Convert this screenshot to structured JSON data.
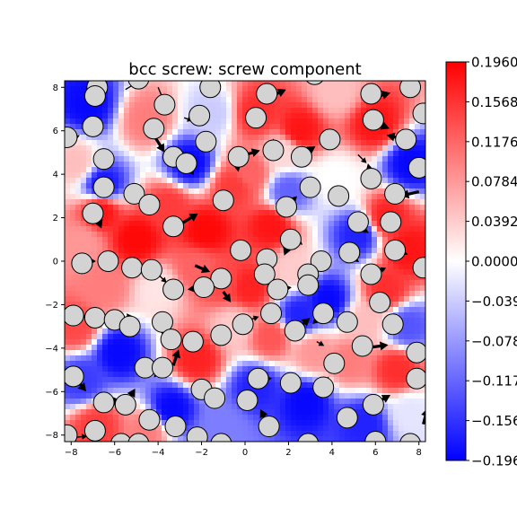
{
  "chart_data": {
    "type": "heatmap",
    "title": "bcc screw: screw component",
    "xlabel": "",
    "ylabel": "",
    "xlim": [
      -8.3,
      8.3
    ],
    "ylim": [
      -8.3,
      8.3
    ],
    "x_ticks": [
      -8,
      -6,
      -4,
      -2,
      0,
      2,
      4,
      6,
      8
    ],
    "y_ticks": [
      -8,
      -6,
      -4,
      -2,
      0,
      2,
      4,
      6,
      8
    ],
    "x_tick_labels": [
      "−8",
      "−6",
      "−4",
      "−2",
      "0",
      "2",
      "4",
      "6",
      "8"
    ],
    "y_tick_labels": [
      "−8",
      "−6",
      "−4",
      "−2",
      "0",
      "2",
      "4",
      "6",
      "8"
    ],
    "grid": false,
    "colormap": "bwr",
    "colors": {
      "low": "#0000ff",
      "mid": "#ffffff",
      "high": "#ff0000",
      "atom_fill": "#d3d3d3",
      "arrow": "#000000"
    },
    "colorbar": {
      "range": [
        -0.196,
        0.196
      ],
      "tick_labels": [
        "0.1960",
        "0.1568",
        "0.1176",
        "0.0784",
        "0.0392",
        "0.0000",
        "−0.039",
        "−0.078",
        "−0.117",
        "−0.156",
        "−0.196"
      ],
      "tick_values": [
        0.196,
        0.1568,
        0.1176,
        0.0784,
        0.0392,
        0.0,
        -0.0392,
        -0.0784,
        -0.1176,
        -0.1568,
        -0.196
      ]
    },
    "field_samples": [
      {
        "x": -7.2,
        "y": 7.2,
        "v": -0.19
      },
      {
        "x": -6.5,
        "y": 3.5,
        "v": -0.18
      },
      {
        "x": -7.8,
        "y": 4.5,
        "v": 0.05
      },
      {
        "x": -6.6,
        "y": 2.3,
        "v": 0.18
      },
      {
        "x": -5.0,
        "y": 1.0,
        "v": 0.19
      },
      {
        "x": -4.5,
        "y": 6.5,
        "v": 0.1
      },
      {
        "x": -3.5,
        "y": 2.5,
        "v": 0.15
      },
      {
        "x": -2.5,
        "y": 4.5,
        "v": -0.19
      },
      {
        "x": -1.5,
        "y": 6.8,
        "v": -0.04
      },
      {
        "x": 0.5,
        "y": 6.8,
        "v": 0.16
      },
      {
        "x": 0.2,
        "y": 4.0,
        "v": 0.12
      },
      {
        "x": 2.5,
        "y": 6.0,
        "v": 0.18
      },
      {
        "x": 4.2,
        "y": 7.8,
        "v": 0.05
      },
      {
        "x": 6.0,
        "y": 6.3,
        "v": 0.18
      },
      {
        "x": 7.6,
        "y": 4.5,
        "v": -0.19
      },
      {
        "x": 4.2,
        "y": 3.8,
        "v": 0.0
      },
      {
        "x": 2.0,
        "y": 3.2,
        "v": -0.12
      },
      {
        "x": 1.2,
        "y": 1.6,
        "v": 0.18
      },
      {
        "x": -1.8,
        "y": 1.4,
        "v": 0.19
      },
      {
        "x": -0.5,
        "y": 3.4,
        "v": 0.15
      },
      {
        "x": -7.5,
        "y": 0.8,
        "v": 0.08
      },
      {
        "x": -6.5,
        "y": -1.2,
        "v": 0.1
      },
      {
        "x": -4.0,
        "y": -1.3,
        "v": 0.02
      },
      {
        "x": -2.2,
        "y": -0.3,
        "v": 0.12
      },
      {
        "x": 0.2,
        "y": -1.2,
        "v": 0.17
      },
      {
        "x": 2.2,
        "y": -0.4,
        "v": 0.04
      },
      {
        "x": 3.8,
        "y": -1.8,
        "v": -0.19
      },
      {
        "x": 5.2,
        "y": 1.2,
        "v": -0.17
      },
      {
        "x": 7.5,
        "y": 0.5,
        "v": 0.18
      },
      {
        "x": 6.5,
        "y": -1.3,
        "v": 0.16
      },
      {
        "x": 7.5,
        "y": -3.0,
        "v": -0.13
      },
      {
        "x": 5.5,
        "y": -2.8,
        "v": 0.05
      },
      {
        "x": 4.8,
        "y": -4.6,
        "v": 0.1
      },
      {
        "x": 7.0,
        "y": -5.0,
        "v": 0.16
      },
      {
        "x": 7.6,
        "y": -7.0,
        "v": -0.02
      },
      {
        "x": 5.5,
        "y": -7.5,
        "v": -0.17
      },
      {
        "x": 2.8,
        "y": -6.5,
        "v": -0.19
      },
      {
        "x": 0.5,
        "y": -5.8,
        "v": -0.17
      },
      {
        "x": -1.0,
        "y": -7.6,
        "v": -0.1
      },
      {
        "x": -3.4,
        "y": -6.8,
        "v": -0.19
      },
      {
        "x": -5.8,
        "y": -4.2,
        "v": -0.19
      },
      {
        "x": -7.5,
        "y": -5.5,
        "v": -0.15
      },
      {
        "x": -7.8,
        "y": -3.0,
        "v": 0.14
      },
      {
        "x": -6.8,
        "y": -7.6,
        "v": 0.15
      },
      {
        "x": -4.5,
        "y": -7.8,
        "v": 0.1
      },
      {
        "x": -2.2,
        "y": -4.5,
        "v": 0.17
      },
      {
        "x": -0.5,
        "y": -3.0,
        "v": 0.04
      },
      {
        "x": 1.2,
        "y": -3.5,
        "v": 0.13
      },
      {
        "x": 2.5,
        "y": -2.5,
        "v": -0.17
      },
      {
        "x": 3.2,
        "y": -4.2,
        "v": 0.08
      },
      {
        "x": 6.5,
        "y": 2.0,
        "v": 0.17
      },
      {
        "x": -1.0,
        "y": -1.0,
        "v": 0.14
      },
      {
        "x": 1.8,
        "y": 5.0,
        "v": 0.03
      }
    ],
    "atoms": [
      [
        -6.8,
        8.0
      ],
      [
        -4.9,
        8.4
      ],
      [
        -1.6,
        8.0
      ],
      [
        1.0,
        7.7
      ],
      [
        3.2,
        8.6
      ],
      [
        5.8,
        7.7
      ],
      [
        7.6,
        8.0
      ],
      [
        -6.9,
        7.6
      ],
      [
        -3.7,
        7.2
      ],
      [
        -2.1,
        6.7
      ],
      [
        0.5,
        6.6
      ],
      [
        8.2,
        6.8
      ],
      [
        -8.2,
        5.7
      ],
      [
        -7.0,
        6.2
      ],
      [
        -4.2,
        6.1
      ],
      [
        -1.8,
        5.5
      ],
      [
        1.3,
        5.1
      ],
      [
        3.9,
        5.6
      ],
      [
        5.9,
        6.5
      ],
      [
        7.4,
        5.6
      ],
      [
        -6.5,
        4.7
      ],
      [
        -3.3,
        4.8
      ],
      [
        -2.7,
        4.5
      ],
      [
        -0.3,
        4.8
      ],
      [
        2.6,
        4.8
      ],
      [
        8.0,
        4.3
      ],
      [
        -6.5,
        3.4
      ],
      [
        -5.1,
        3.1
      ],
      [
        -4.4,
        2.6
      ],
      [
        -1.0,
        2.8
      ],
      [
        1.9,
        2.5
      ],
      [
        3.0,
        3.4
      ],
      [
        4.3,
        3.0
      ],
      [
        5.8,
        3.8
      ],
      [
        6.9,
        3.1
      ],
      [
        -7.0,
        2.2
      ],
      [
        -3.3,
        1.6
      ],
      [
        2.1,
        1.0
      ],
      [
        5.2,
        1.8
      ],
      [
        6.7,
        1.8
      ],
      [
        -0.2,
        0.5
      ],
      [
        1.0,
        0.1
      ],
      [
        3.5,
        0.0
      ],
      [
        4.8,
        0.4
      ],
      [
        6.9,
        0.5
      ],
      [
        -7.5,
        -0.1
      ],
      [
        -6.3,
        0.0
      ],
      [
        -5.2,
        -0.3
      ],
      [
        -4.3,
        -0.4
      ],
      [
        -1.1,
        -0.8
      ],
      [
        0.9,
        -0.6
      ],
      [
        2.9,
        -0.6
      ],
      [
        5.8,
        -0.6
      ],
      [
        8.2,
        -0.3
      ],
      [
        -3.3,
        -1.3
      ],
      [
        -1.9,
        -1.2
      ],
      [
        1.5,
        -1.3
      ],
      [
        2.9,
        -1.1
      ],
      [
        6.2,
        -1.9
      ],
      [
        -7.9,
        -2.5
      ],
      [
        -6.9,
        -2.6
      ],
      [
        -6.0,
        -2.7
      ],
      [
        -5.3,
        -3.0
      ],
      [
        -3.8,
        -2.8
      ],
      [
        -0.1,
        -2.9
      ],
      [
        1.2,
        -2.4
      ],
      [
        3.6,
        -2.4
      ],
      [
        4.7,
        -2.8
      ],
      [
        6.8,
        -2.9
      ],
      [
        -3.4,
        -3.6
      ],
      [
        -2.4,
        -3.7
      ],
      [
        -1.1,
        -3.4
      ],
      [
        2.3,
        -3.2
      ],
      [
        5.4,
        -3.9
      ],
      [
        7.9,
        -4.2
      ],
      [
        -7.9,
        -5.3
      ],
      [
        -4.6,
        -4.9
      ],
      [
        -3.8,
        -4.9
      ],
      [
        -2.0,
        -5.9
      ],
      [
        -1.4,
        -6.3
      ],
      [
        0.6,
        -5.4
      ],
      [
        2.1,
        -5.6
      ],
      [
        4.1,
        -4.7
      ],
      [
        3.6,
        -5.8
      ],
      [
        7.9,
        -5.4
      ],
      [
        -6.5,
        -6.5
      ],
      [
        -5.5,
        -6.6
      ],
      [
        -4.4,
        -7.3
      ],
      [
        0.1,
        -6.4
      ],
      [
        1.1,
        -7.6
      ],
      [
        4.7,
        -7.2
      ],
      [
        5.9,
        -6.6
      ],
      [
        -8.2,
        -8.0
      ],
      [
        -6.9,
        -7.8
      ],
      [
        -5.7,
        -8.4
      ],
      [
        -4.9,
        -8.4
      ],
      [
        -3.2,
        -7.6
      ],
      [
        -2.2,
        -8.1
      ],
      [
        -1.1,
        -8.4
      ],
      [
        2.9,
        -8.4
      ],
      [
        6.0,
        -8.3
      ],
      [
        7.6,
        -8.4
      ]
    ],
    "arrows": [
      [
        -6.8,
        7.6,
        0.5,
        1.2,
        "thin"
      ],
      [
        -5.5,
        7.9,
        1.0,
        0.6,
        "thin"
      ],
      [
        -4.0,
        8.0,
        0.5,
        -1.2,
        "thin"
      ],
      [
        -2.8,
        6.6,
        0.8,
        -0.3,
        "thin"
      ],
      [
        1.0,
        7.5,
        1.8,
        0.8,
        "thick"
      ],
      [
        5.8,
        7.5,
        1.8,
        0.5,
        "thick"
      ],
      [
        -8.0,
        5.6,
        0.8,
        0.4,
        "thin"
      ],
      [
        -4.2,
        5.8,
        1.0,
        -1.6,
        "thick"
      ],
      [
        1.3,
        5.0,
        0.0,
        1.3,
        "thick"
      ],
      [
        -0.3,
        4.8,
        2.0,
        0.6,
        "thick"
      ],
      [
        2.5,
        4.8,
        1.5,
        1.0,
        "thick"
      ],
      [
        5.9,
        6.4,
        1.5,
        -0.6,
        "thick"
      ],
      [
        7.4,
        5.6,
        -1.8,
        0.4,
        "thick"
      ],
      [
        5.2,
        4.9,
        0.8,
        -0.8,
        "thin"
      ],
      [
        8.0,
        4.2,
        -0.6,
        0.5,
        "thin"
      ],
      [
        -0.4,
        4.6,
        0.2,
        -1.0,
        "thin"
      ],
      [
        -2.5,
        4.2,
        0.3,
        -0.5,
        "thin"
      ],
      [
        5.8,
        3.9,
        -0.3,
        1.2,
        "thin"
      ],
      [
        8.0,
        3.2,
        -1.7,
        -0.4,
        "thick"
      ],
      [
        -4.3,
        2.4,
        0.8,
        0.8,
        "thin"
      ],
      [
        -3.3,
        1.5,
        2.3,
        1.4,
        "thick"
      ],
      [
        -1.0,
        2.9,
        0.9,
        -0.5,
        "thin"
      ],
      [
        1.9,
        2.5,
        1.0,
        1.0,
        "thick"
      ],
      [
        2.1,
        1.0,
        -0.6,
        -1.5,
        "thick"
      ],
      [
        -6.6,
        2.1,
        -0.9,
        0.6,
        "thin"
      ],
      [
        -6.8,
        2.0,
        0.4,
        -1.0,
        "thick"
      ],
      [
        6.7,
        1.8,
        1.0,
        0.0,
        "thin"
      ],
      [
        5.2,
        1.6,
        1.0,
        -0.6,
        "thin"
      ],
      [
        -7.5,
        0.0,
        1.3,
        0.0,
        "thick"
      ],
      [
        -5.2,
        -0.3,
        0.9,
        0.1,
        "thin"
      ],
      [
        -2.3,
        -0.2,
        1.4,
        -0.6,
        "thick"
      ],
      [
        -0.4,
        0.4,
        0.6,
        0.3,
        "thin"
      ],
      [
        1.0,
        -0.3,
        0.6,
        -1.0,
        "thick"
      ],
      [
        2.1,
        1.2,
        1.1,
        -0.9,
        "thick"
      ],
      [
        4.8,
        0.3,
        0.9,
        -0.7,
        "thin"
      ],
      [
        5.8,
        -0.6,
        1.4,
        0.6,
        "thin"
      ],
      [
        6.8,
        0.6,
        1.4,
        -0.6,
        "thin"
      ],
      [
        -4.1,
        -0.5,
        1.0,
        -1.0,
        "thin"
      ],
      [
        -1.9,
        -1.2,
        -1.5,
        -0.2,
        "thick"
      ],
      [
        -1.0,
        -1.4,
        0.7,
        -1.0,
        "thick"
      ],
      [
        1.5,
        -1.3,
        1.3,
        0.2,
        "thick"
      ],
      [
        3.6,
        -2.4,
        -1.0,
        -1.0,
        "thick"
      ],
      [
        -7.6,
        -2.5,
        1.7,
        -0.3,
        "thick"
      ],
      [
        -5.3,
        -2.6,
        -0.3,
        0.4,
        "thin"
      ],
      [
        -0.1,
        -2.8,
        1.5,
        0.5,
        "thin"
      ],
      [
        1.2,
        -2.4,
        0.4,
        -0.4,
        "thin"
      ],
      [
        2.3,
        -3.2,
        1.4,
        1.2,
        "thick"
      ],
      [
        4.7,
        -2.8,
        -0.8,
        0.5,
        "thin"
      ],
      [
        6.2,
        -1.9,
        0.6,
        -0.6,
        "thin"
      ],
      [
        -3.8,
        -2.6,
        0.4,
        -2.0,
        "thick"
      ],
      [
        -3.3,
        -4.8,
        0.5,
        1.5,
        "thick"
      ],
      [
        -2.3,
        -3.7,
        -0.9,
        -0.6,
        "thin"
      ],
      [
        -0.1,
        -2.7,
        0.6,
        -1.2,
        "thin"
      ],
      [
        3.3,
        -3.7,
        0.7,
        -0.4,
        "thin"
      ],
      [
        5.5,
        -4.0,
        2.2,
        0.3,
        "thick"
      ],
      [
        -7.9,
        -5.3,
        1.2,
        -1.4,
        "thick"
      ],
      [
        -6.5,
        -6.5,
        1.6,
        0.2,
        "thick"
      ],
      [
        -5.5,
        -6.6,
        0.9,
        1.5,
        "thick"
      ],
      [
        -3.8,
        -4.9,
        -0.8,
        -0.9,
        "thin"
      ],
      [
        -2.0,
        -5.9,
        0.3,
        -0.4,
        "thin"
      ],
      [
        0.6,
        -5.4,
        1.3,
        0.0,
        "thin"
      ],
      [
        3.6,
        -5.8,
        0.5,
        1.0,
        "thin"
      ],
      [
        4.1,
        -4.7,
        0.5,
        0.5,
        "thin"
      ],
      [
        5.9,
        -6.6,
        1.6,
        0.9,
        "thick"
      ],
      [
        7.9,
        -5.4,
        -0.6,
        -0.6,
        "thin"
      ],
      [
        8.2,
        -7.5,
        0.4,
        1.5,
        "thick"
      ],
      [
        -4.4,
        -7.3,
        1.0,
        0.4,
        "thin"
      ],
      [
        -3.2,
        -7.6,
        0.4,
        1.0,
        "thin"
      ],
      [
        0.1,
        -6.4,
        -0.4,
        -0.8,
        "thin"
      ],
      [
        1.1,
        -7.6,
        -0.8,
        1.6,
        "thick"
      ],
      [
        4.7,
        -7.2,
        -0.2,
        -0.9,
        "thin"
      ],
      [
        6.0,
        -6.6,
        -0.2,
        0.8,
        "thin"
      ],
      [
        -7.8,
        -8.1,
        1.1,
        0.1,
        "thin"
      ],
      [
        -5.7,
        -8.4,
        1.0,
        0.3,
        "thin"
      ],
      [
        -2.2,
        -8.1,
        0.9,
        0.3,
        "thin"
      ]
    ]
  }
}
